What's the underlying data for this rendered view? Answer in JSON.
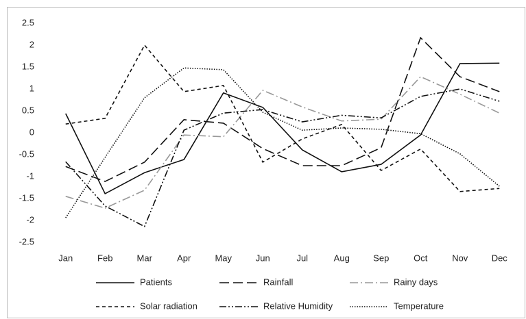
{
  "chart_data": {
    "type": "line",
    "categories": [
      "Jan",
      "Feb",
      "Mar",
      "Apr",
      "May",
      "Jun",
      "Jul",
      "Aug",
      "Sep",
      "Oct",
      "Nov",
      "Dec"
    ],
    "series": [
      {
        "name": "Patients",
        "color": "#111111",
        "style": "solid",
        "values": [
          0.44,
          -1.39,
          -0.91,
          -0.61,
          0.91,
          0.58,
          -0.39,
          -0.89,
          -0.72,
          -0.05,
          1.58,
          1.59
        ]
      },
      {
        "name": "Rainfall",
        "color": "#111111",
        "style": "long-dash",
        "values": [
          -0.77,
          -1.11,
          -0.67,
          0.3,
          0.22,
          -0.36,
          -0.75,
          -0.75,
          -0.34,
          2.17,
          1.28,
          0.94
        ]
      },
      {
        "name": "Rainy days",
        "color": "#999999",
        "style": "dash-dot",
        "values": [
          -1.45,
          -1.72,
          -1.31,
          -0.05,
          -0.09,
          0.97,
          0.59,
          0.27,
          0.31,
          1.28,
          0.88,
          0.45
        ]
      },
      {
        "name": "Solar radiation",
        "color": "#111111",
        "style": "short-dash",
        "values": [
          0.2,
          0.33,
          2.0,
          0.94,
          1.08,
          -0.67,
          -0.14,
          0.19,
          -0.86,
          -0.37,
          -1.34,
          -1.27
        ]
      },
      {
        "name": "Relative Humidity",
        "color": "#111111",
        "style": "dash-dot-dot",
        "values": [
          -0.66,
          -1.67,
          -2.14,
          0.06,
          0.45,
          0.53,
          0.25,
          0.4,
          0.34,
          0.83,
          1.0,
          0.72
        ]
      },
      {
        "name": "Temperature",
        "color": "#111111",
        "style": "dotted",
        "values": [
          -1.94,
          -0.56,
          0.8,
          1.48,
          1.44,
          0.47,
          0.06,
          0.11,
          0.08,
          -0.02,
          -0.48,
          -1.22
        ]
      }
    ],
    "ylim": [
      -2.5,
      2.5
    ],
    "yticks": [
      2.5,
      2,
      1.5,
      1,
      0.5,
      0,
      -0.5,
      -1,
      -1.5,
      -2,
      -2.5
    ],
    "grid": false,
    "legend": "bottom"
  }
}
